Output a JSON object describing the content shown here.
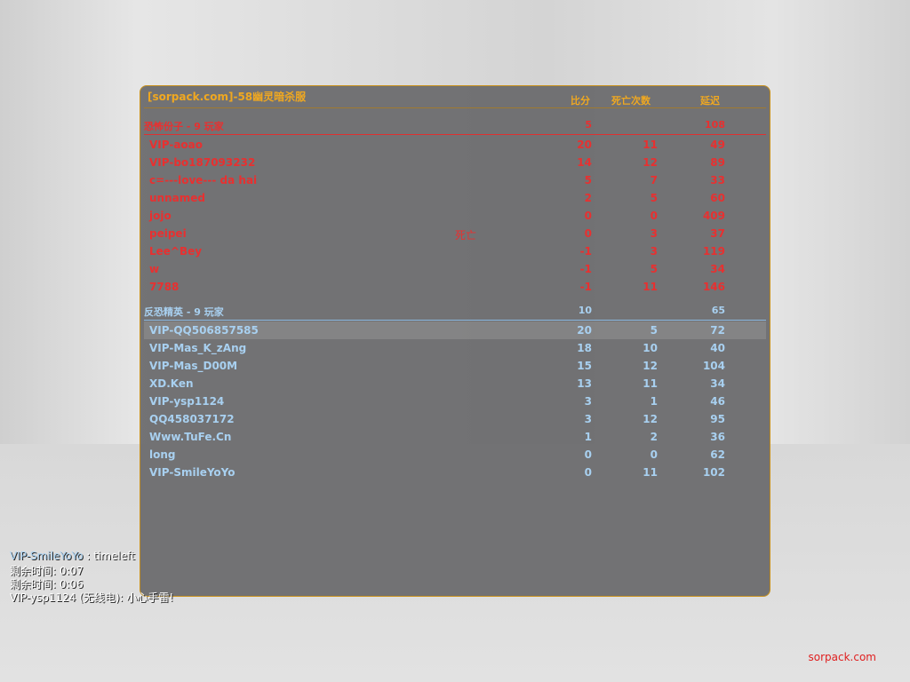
{
  "title": "[sorpack.com]-58幽灵暗杀服",
  "headers": {
    "score": "比分",
    "deaths": "死亡次数",
    "ping": "延迟"
  },
  "t_team": {
    "name": "恐怖份子   -   9 玩家",
    "score": "5",
    "ping": "108",
    "color": "#e83030",
    "players": [
      {
        "name": "VIP-aoao",
        "score": "20",
        "deaths": "11",
        "ping": "49"
      },
      {
        "name": "VIP-bo187093232",
        "score": "14",
        "deaths": "12",
        "ping": "89"
      },
      {
        "name": "c=---love---    da    hai",
        "score": "5",
        "deaths": "7",
        "ping": "33"
      },
      {
        "name": "unnamed",
        "score": "2",
        "deaths": "5",
        "ping": "60"
      },
      {
        "name": "jojo",
        "score": "0",
        "deaths": "0",
        "ping": "409"
      },
      {
        "name": "peipei",
        "status": "死亡",
        "score": "0",
        "deaths": "3",
        "ping": "37"
      },
      {
        "name": "Lee^Bey",
        "score": "-1",
        "deaths": "3",
        "ping": "119"
      },
      {
        "name": "w",
        "score": "-1",
        "deaths": "5",
        "ping": "34"
      },
      {
        "name": "7788",
        "score": "-1",
        "deaths": "11",
        "ping": "146"
      }
    ]
  },
  "ct_team": {
    "name": "反恐精英   -   9 玩家",
    "score": "10",
    "ping": "65",
    "color": "#a8d0f0",
    "players": [
      {
        "name": "VIP-QQ506857585",
        "score": "20",
        "deaths": "5",
        "ping": "72"
      },
      {
        "name": "VIP-Mas_K_zAng",
        "score": "18",
        "deaths": "10",
        "ping": "40"
      },
      {
        "name": "VIP-Mas_D00M",
        "score": "15",
        "deaths": "12",
        "ping": "104"
      },
      {
        "name": "XD.Ken",
        "score": "13",
        "deaths": "11",
        "ping": "34"
      },
      {
        "name": "VIP-ysp1124",
        "score": "3",
        "deaths": "1",
        "ping": "46"
      },
      {
        "name": "QQ458037172",
        "score": "3",
        "deaths": "12",
        "ping": "95"
      },
      {
        "name": "Www.TuFe.Cn",
        "score": "1",
        "deaths": "2",
        "ping": "36"
      },
      {
        "name": "long",
        "score": "0",
        "deaths": "0",
        "ping": "62"
      },
      {
        "name": "VIP-SmileYoYo",
        "score": "0",
        "deaths": "11",
        "ping": "102"
      }
    ]
  },
  "chat": [
    {
      "name": "VIP-SmileYoYo",
      "text": " :  timeleft"
    },
    {
      "name": "",
      "text": "剩余时间:  0:07"
    },
    {
      "name": "",
      "text": "剩余时间:  0:06"
    },
    {
      "name": "",
      "text": "VIP-ysp1124 (无线电): 小心手雷!"
    }
  ],
  "watermark": "sorpack.com"
}
